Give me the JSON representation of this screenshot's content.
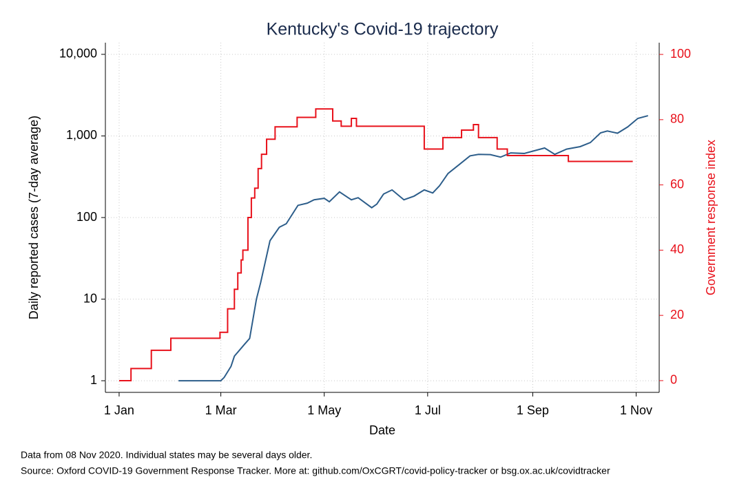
{
  "chart_data": {
    "type": "line",
    "title": "Kentucky's Covid-19 trajectory",
    "xlabel": "Date",
    "ylabel": "Daily reported cases (7-day average)",
    "y2label": "Government response index",
    "notes": [
      "Data from 08 Nov 2020. Individual states may be several days older.",
      "Source: Oxford COVID-19 Government Response Tracker. More at: github.com/OxCGRT/covid-policy-tracker or bsg.ox.ac.uk/covidtracker"
    ],
    "xlim": [
      -8.1,
      318.6
    ],
    "xticks": [
      {
        "value": 0,
        "label": "1 Jan"
      },
      {
        "value": 60,
        "label": "1 Mar"
      },
      {
        "value": 121,
        "label": "1 May"
      },
      {
        "value": 182,
        "label": "1 Jul"
      },
      {
        "value": 244,
        "label": "1 Sep"
      },
      {
        "value": 305,
        "label": "1 Nov"
      }
    ],
    "ylog": true,
    "ylim": [
      0.72,
      13900
    ],
    "yticks": [
      1,
      10,
      100,
      {
        "value": 1000,
        "label": "1,000"
      },
      {
        "value": 10000,
        "label": "10,000"
      }
    ],
    "y2lim": [
      -3.6,
      103.6
    ],
    "y2ticks": [
      0,
      20,
      40,
      60,
      80,
      100
    ],
    "grid": true,
    "series": [
      {
        "name": "Daily reported cases",
        "color": "#2c5d8a",
        "axis": "y",
        "drawstyle": "line",
        "x": [
          35,
          60,
          62,
          66,
          68,
          74,
          77,
          81,
          83.5,
          89,
          94.5,
          98.6,
          105.5,
          111,
          115,
          121,
          124,
          130,
          137,
          141,
          149,
          152,
          156,
          161,
          168,
          174,
          180,
          185,
          189,
          194,
          200,
          207,
          212,
          219,
          225,
          231,
          239,
          251,
          257,
          264,
          272,
          278,
          284,
          288,
          294,
          300,
          306,
          312
        ],
        "values": [
          1,
          1,
          1.1,
          1.5,
          2,
          2.8,
          3.3,
          10,
          16,
          52,
          76,
          84,
          141,
          150,
          165,
          172,
          156,
          206,
          165,
          175,
          132,
          146,
          194,
          218,
          165,
          183,
          218,
          200,
          245,
          346,
          435,
          570,
          595,
          590,
          550,
          620,
          610,
          712,
          595,
          690,
          740,
          830,
          1090,
          1150,
          1080,
          1290,
          1640,
          1770
        ]
      },
      {
        "name": "Government response index",
        "color": "#e8101a",
        "axis": "y2",
        "drawstyle": "steps-post",
        "x": [
          0,
          7,
          19,
          30.5,
          59.5,
          64,
          68,
          70,
          72,
          73,
          76,
          78,
          80,
          82,
          84,
          87,
          92,
          105,
          116,
          126,
          131,
          137,
          140,
          180,
          191,
          202,
          209,
          212,
          223,
          229,
          265,
          303
        ],
        "values": [
          0,
          3.7,
          9.3,
          13,
          14.8,
          22,
          28,
          33,
          37,
          40,
          50,
          56,
          59,
          65,
          69.4,
          74,
          77.8,
          80.7,
          83.3,
          79.6,
          78,
          80.4,
          78,
          71,
          74.5,
          76.8,
          78.5,
          74.5,
          71,
          69,
          67.2,
          67.2
        ]
      }
    ]
  }
}
